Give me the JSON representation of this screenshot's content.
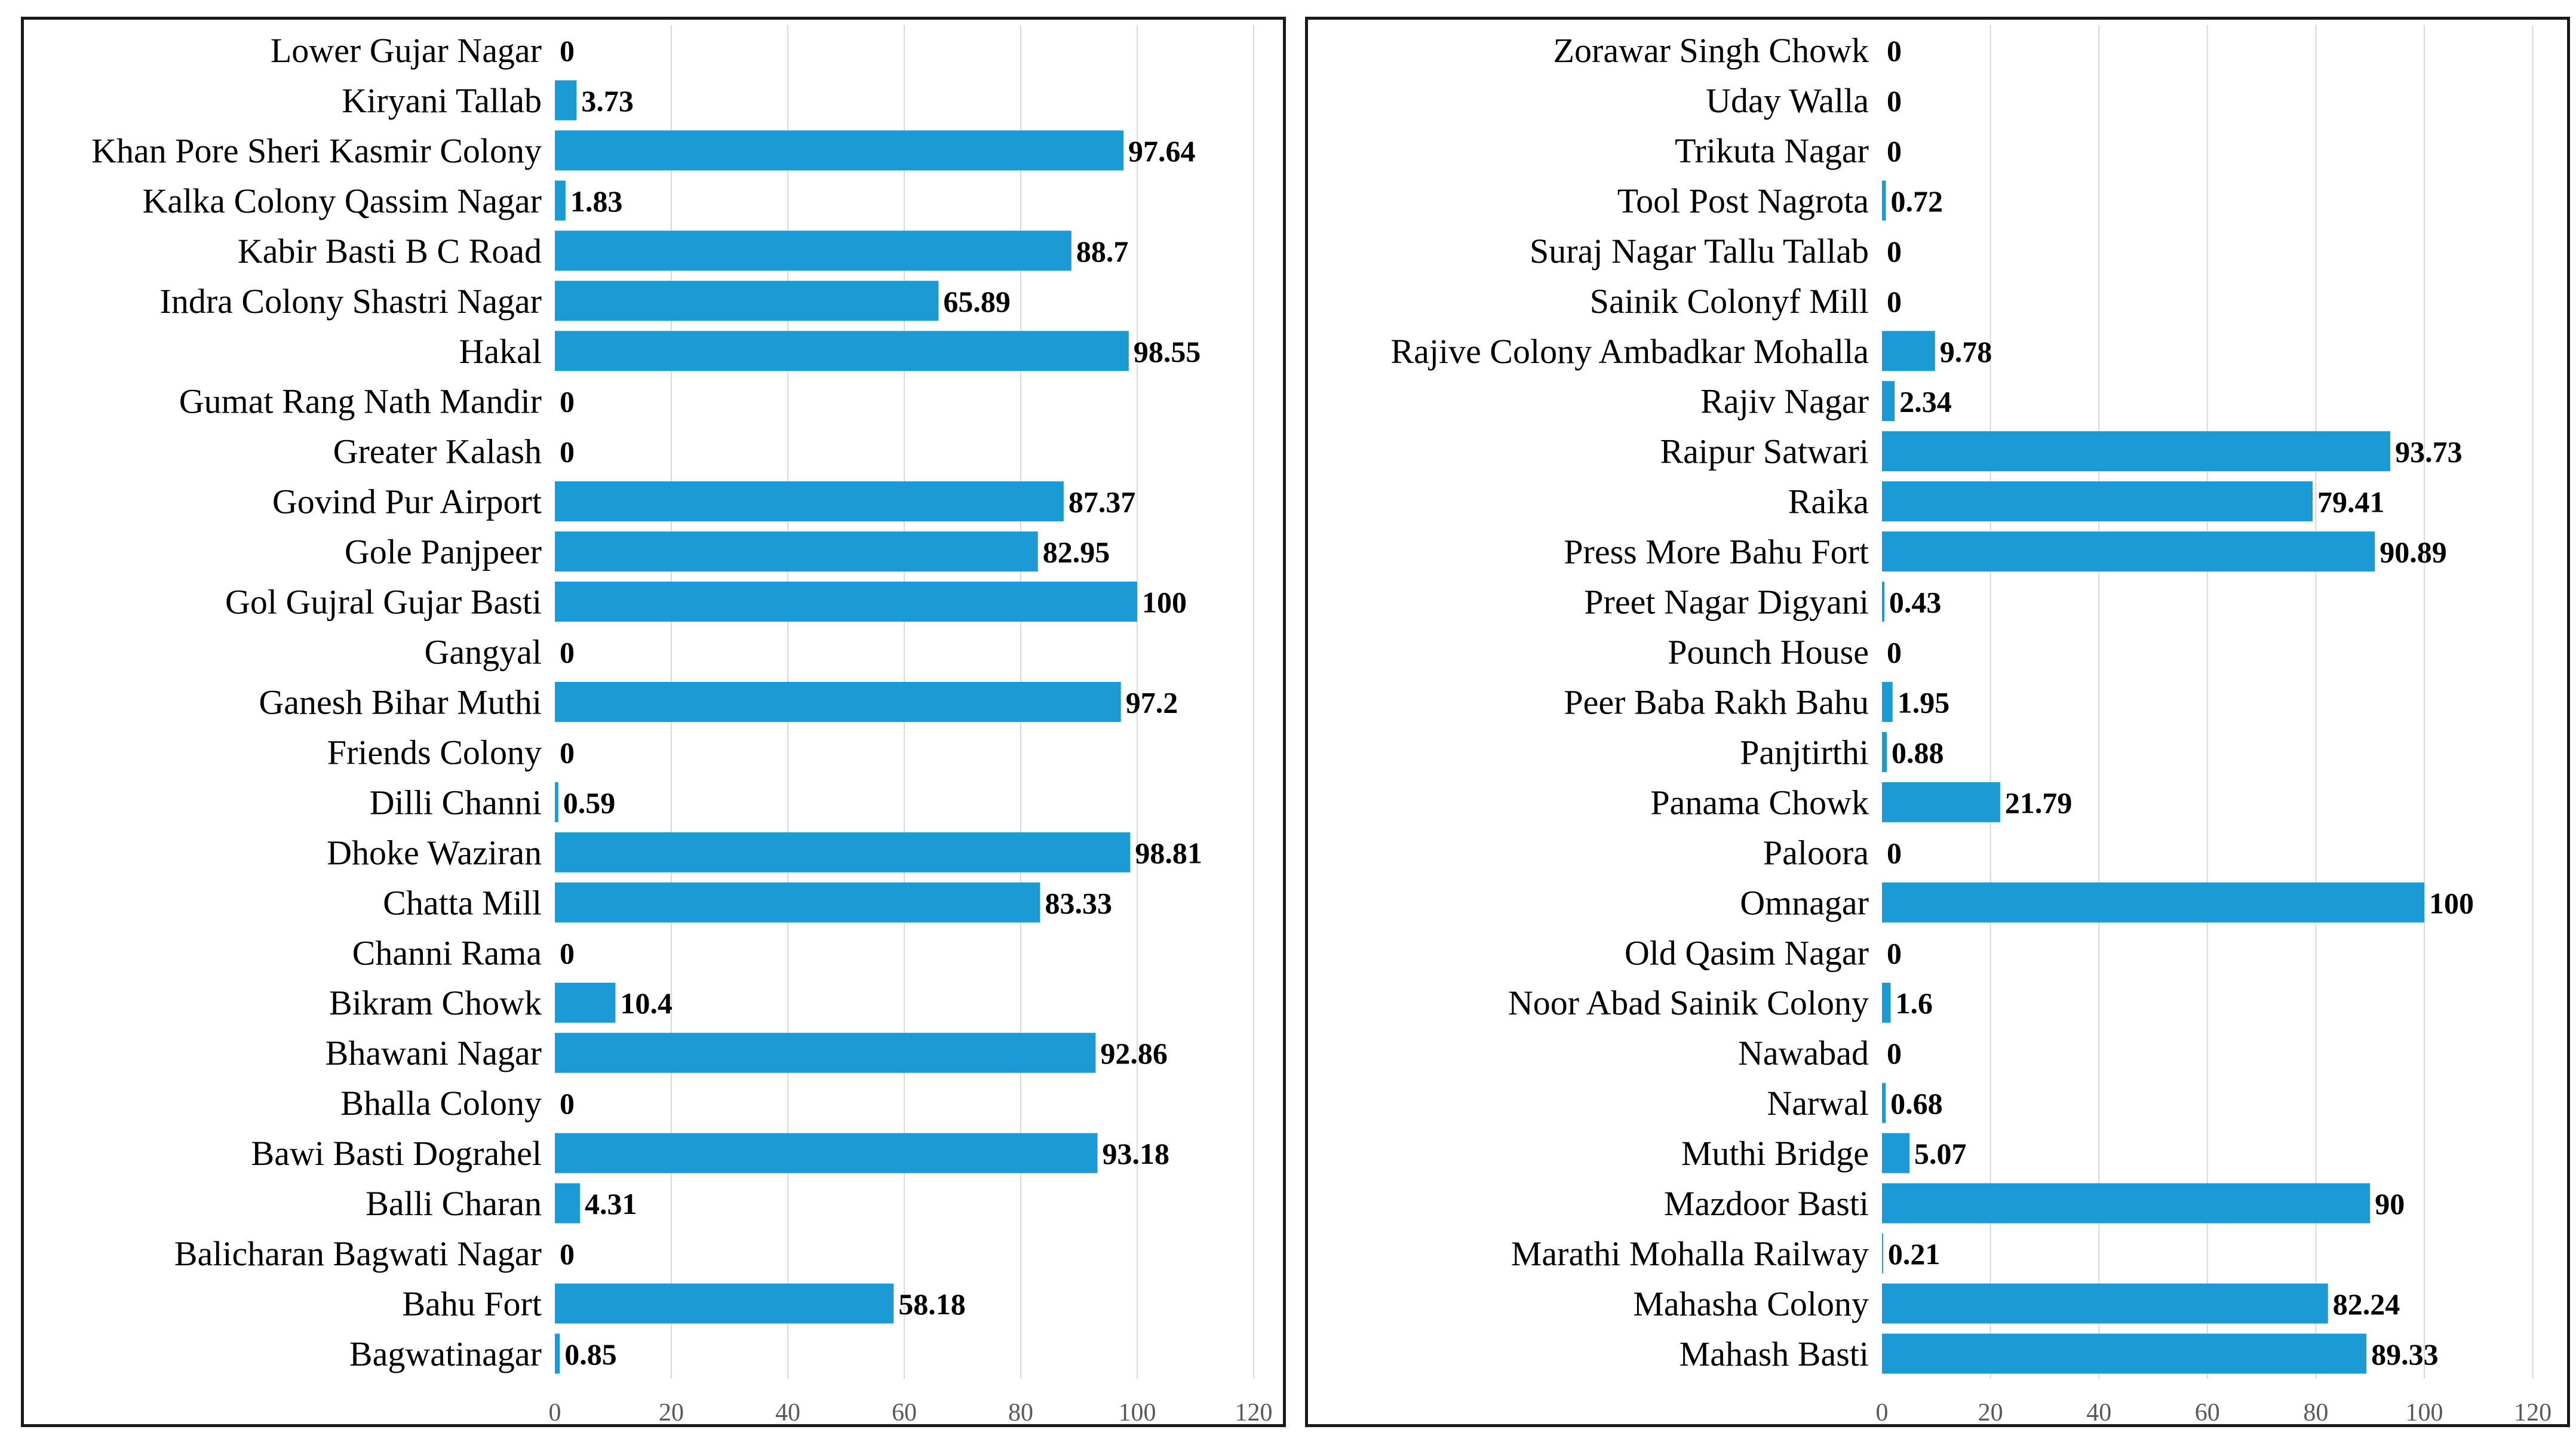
{
  "colors": {
    "bar": "#1b9ad6",
    "grid": "#d9d9d9",
    "text": "#000000",
    "tick": "#595959"
  },
  "chart_data": [
    {
      "type": "bar",
      "orientation": "horizontal",
      "title": "",
      "xlabel": "",
      "ylabel": "",
      "xlim": [
        0,
        120
      ],
      "ticks": [
        0,
        20,
        40,
        60,
        80,
        100,
        120
      ],
      "grid": true,
      "categories": [
        "Lower Gujar Nagar",
        "Kiryani Tallab",
        "Khan Pore Sheri Kasmir Colony",
        "Kalka Colony Qassim Nagar",
        "Kabir Basti B C Road",
        "Indra Colony Shastri Nagar",
        "Hakal",
        "Gumat Rang Nath Mandir",
        "Greater Kalash",
        "Govind Pur Airport",
        "Gole Panjpeer",
        "Gol Gujral Gujar Basti",
        "Gangyal",
        "Ganesh Bihar Muthi",
        "Friends Colony",
        "Dilli Channi",
        "Dhoke Waziran",
        "Chatta Mill",
        "Channi Rama",
        "Bikram Chowk",
        "Bhawani Nagar",
        "Bhalla Colony",
        "Bawi Basti Dograhel",
        "Balli Charan",
        "Balicharan Bagwati Nagar",
        "Bahu Fort",
        "Bagwatinagar"
      ],
      "values": [
        0,
        3.73,
        97.64,
        1.83,
        88.7,
        65.89,
        98.55,
        0,
        0,
        87.37,
        82.95,
        100,
        0,
        97.2,
        0,
        0.59,
        98.81,
        83.33,
        0,
        10.4,
        92.86,
        0,
        93.18,
        4.31,
        0,
        58.18,
        0.85
      ]
    },
    {
      "type": "bar",
      "orientation": "horizontal",
      "title": "",
      "xlabel": "",
      "ylabel": "",
      "xlim": [
        0,
        120
      ],
      "ticks": [
        0,
        20,
        40,
        60,
        80,
        100,
        120
      ],
      "grid": true,
      "categories": [
        "Zorawar Singh Chowk",
        "Uday Walla",
        "Trikuta Nagar",
        "Tool Post Nagrota",
        "Suraj Nagar Tallu Tallab",
        "Sainik Colonyf Mill",
        "Rajive Colony Ambadkar Mohalla",
        "Rajiv Nagar",
        "Raipur Satwari",
        "Raika",
        "Press More Bahu Fort",
        "Preet Nagar Digyani",
        "Pounch House",
        "Peer Baba Rakh Bahu",
        "Panjtirthi",
        "Panama Chowk",
        "Paloora",
        "Omnagar",
        "Old Qasim Nagar",
        "Noor Abad Sainik Colony",
        "Nawabad",
        "Narwal",
        "Muthi Bridge",
        "Mazdoor Basti",
        "Marathi Mohalla Railway",
        "Mahasha Colony",
        "Mahash Basti"
      ],
      "values": [
        0,
        0,
        0,
        0.72,
        0,
        0,
        9.78,
        2.34,
        93.73,
        79.41,
        90.89,
        0.43,
        0,
        1.95,
        0.88,
        21.79,
        0,
        100,
        0,
        1.6,
        0,
        0.68,
        5.07,
        90,
        0.21,
        82.24,
        89.33
      ]
    }
  ]
}
